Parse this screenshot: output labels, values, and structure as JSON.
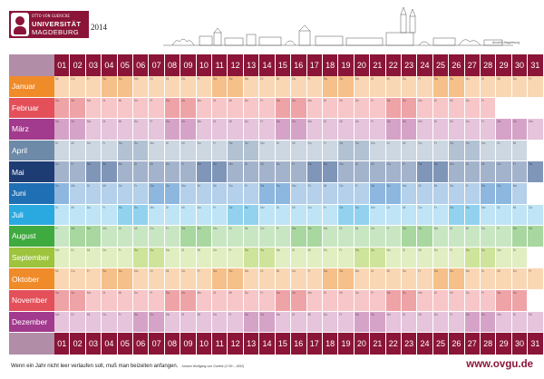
{
  "logo": {
    "line_top": "OTTO VON GUERICKE",
    "line_mid": "UNIVERSITÄT",
    "line_bot": "MAGDEBURG"
  },
  "year": "2014",
  "skyline_note": "Ansicht Magdeburg",
  "days": [
    "01",
    "02",
    "03",
    "04",
    "05",
    "06",
    "07",
    "08",
    "09",
    "10",
    "11",
    "12",
    "13",
    "14",
    "15",
    "16",
    "17",
    "18",
    "19",
    "20",
    "21",
    "22",
    "23",
    "24",
    "25",
    "26",
    "27",
    "28",
    "29",
    "30",
    "31"
  ],
  "months": [
    {
      "name": "Januar",
      "color": "#f08b2a",
      "light": "#f9d7b4",
      "mid": "#f5c08a",
      "start": 2,
      "len": 31
    },
    {
      "name": "Februar",
      "color": "#e4505a",
      "light": "#f7c6c8",
      "mid": "#eea3a7",
      "start": 5,
      "len": 28
    },
    {
      "name": "März",
      "color": "#a23a8d",
      "light": "#e5c4dc",
      "mid": "#d6a3c8",
      "start": 5,
      "len": 31
    },
    {
      "name": "April",
      "color": "#6d8aa8",
      "light": "#ccd7e2",
      "mid": "#b2c2d3",
      "start": 1,
      "len": 30
    },
    {
      "name": "Mai",
      "color": "#1e3c74",
      "light": "#a4b3cc",
      "mid": "#8096b9",
      "start": 3,
      "len": 31
    },
    {
      "name": "Juni",
      "color": "#1f6fb5",
      "light": "#b4d0ea",
      "mid": "#8db7df",
      "start": 6,
      "len": 30
    },
    {
      "name": "Juli",
      "color": "#2aa9e0",
      "light": "#bfe4f5",
      "mid": "#92d2ef",
      "start": 1,
      "len": 31
    },
    {
      "name": "August",
      "color": "#3faa3f",
      "light": "#c9e6c3",
      "mid": "#a8d79f",
      "start": 4,
      "len": 31
    },
    {
      "name": "September",
      "color": "#9dc43c",
      "light": "#e1eec1",
      "mid": "#cee49b",
      "start": 0,
      "len": 30
    },
    {
      "name": "Oktober",
      "color": "#f08b2a",
      "light": "#f9d7b4",
      "mid": "#f5c08a",
      "start": 2,
      "len": 31
    },
    {
      "name": "November",
      "color": "#e4505a",
      "light": "#f7c6c8",
      "mid": "#eea3a7",
      "start": 5,
      "len": 30
    },
    {
      "name": "Dezember",
      "color": "#a23a8d",
      "light": "#e5c4dc",
      "mid": "#d6a3c8",
      "start": 0,
      "len": 31
    }
  ],
  "weekday_abbr": [
    "Mo",
    "Di",
    "Mi",
    "Do",
    "Fr",
    "Sa",
    "So"
  ],
  "quote": "Wenn ein Jahr nicht leer verlaufen soll, muß man beizeiten anfangen.",
  "quote_cite": "Johann Wolfgang von Goethe (1749 – 1832)",
  "url": "www.ovgu.de"
}
